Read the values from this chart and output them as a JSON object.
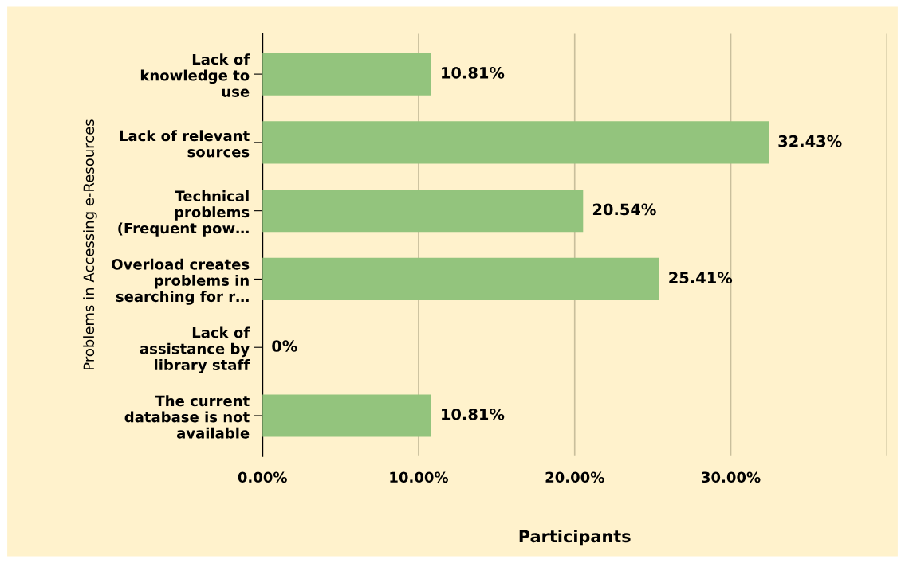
{
  "chart_data": {
    "type": "bar",
    "orientation": "horizontal",
    "xlabel": "Participants",
    "ylabel": "Problems in Accessing e-Resources",
    "categories": [
      "Lack of\nknowledge to\nuse",
      "Lack of relevant\nsources",
      "Technical\nproblems\n(Frequent pow…",
      "Overload creates\nproblems in\nsearching for r…",
      "Lack of\nassistance by\nlibrary staff",
      "The current\ndatabase is not\navailable"
    ],
    "values": [
      10.81,
      32.43,
      20.54,
      25.41,
      0,
      10.81
    ],
    "value_labels": [
      "10.81%",
      "32.43%",
      "20.54%",
      "25.41%",
      "0%",
      "10.81%"
    ],
    "color": "#93c47d",
    "xlim": [
      0,
      40
    ],
    "xticks": [
      {
        "value": 0,
        "label": "0.00%"
      },
      {
        "value": 10,
        "label": "10.00%"
      },
      {
        "value": 20,
        "label": "20.00%"
      },
      {
        "value": 30,
        "label": "30.00%"
      },
      {
        "value": 40,
        "label": null
      }
    ],
    "grid": "x",
    "legend": false
  }
}
